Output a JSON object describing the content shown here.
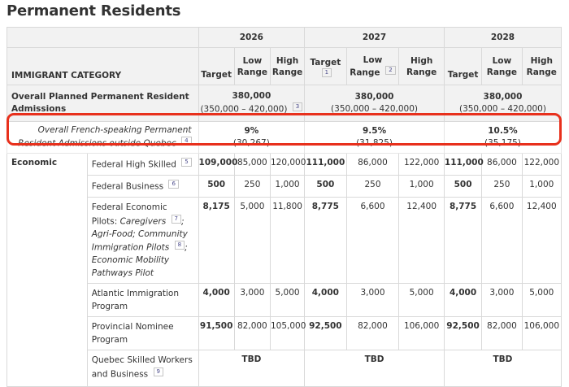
{
  "page": {
    "title": "Permanent Residents"
  },
  "header": {
    "years": [
      "2026",
      "2027",
      "2028"
    ],
    "category_label": "IMMIGRANT CATEGORY",
    "target": "Target",
    "low_range": "Low Range",
    "high_range": "High Range",
    "footnotes": [
      "1",
      "2"
    ]
  },
  "overall": {
    "label": "Overall Planned Permanent Resident Admissions",
    "footnote": "3",
    "years": [
      {
        "value": "380,000",
        "range": "(350,000 – 420,000)"
      },
      {
        "value": "380,000",
        "range": "(350,000 – 420,000)"
      },
      {
        "value": "380,000",
        "range": "(350,000 – 420,000)"
      }
    ]
  },
  "french": {
    "label": "Overall French-speaking Permanent Resident Admissions outside Quebec",
    "footnote": "4",
    "years": [
      {
        "pct": "9%",
        "count": "(30,267)"
      },
      {
        "pct": "9.5%",
        "count": "(31,825)"
      },
      {
        "pct": "10.5%",
        "count": "(35,175)"
      }
    ]
  },
  "economic": {
    "label": "Economic",
    "rows": [
      {
        "name": "Federal High Skilled",
        "footnote": "5",
        "values": [
          "109,000",
          "85,000",
          "120,000",
          "111,000",
          "86,000",
          "122,000",
          "111,000",
          "86,000",
          "122,000"
        ]
      },
      {
        "name": "Federal Business",
        "footnote": "6",
        "values": [
          "500",
          "250",
          "1,000",
          "500",
          "250",
          "1,000",
          "500",
          "250",
          "1,000"
        ]
      },
      {
        "name": "Federal Economic Pilots:",
        "sub1": "Caregivers",
        "fn1": "7",
        "sub2": "; Agri-Food; Community Immigration Pilots",
        "fn2": "8",
        "sub3": "; Economic Mobility Pathways Pilot",
        "values": [
          "8,175",
          "5,000",
          "11,800",
          "8,775",
          "6,600",
          "12,400",
          "8,775",
          "6,600",
          "12,400"
        ]
      },
      {
        "name": "Atlantic Immigration Program",
        "values": [
          "4,000",
          "3,000",
          "5,000",
          "4,000",
          "3,000",
          "5,000",
          "4,000",
          "3,000",
          "5,000"
        ]
      },
      {
        "name": "Provincial Nominee Program",
        "values": [
          "91,500",
          "82,000",
          "105,000",
          "92,500",
          "82,000",
          "106,000",
          "92,500",
          "82,000",
          "106,000"
        ]
      },
      {
        "name": "Quebec Skilled Workers and Business",
        "footnote": "9",
        "tbd": [
          "TBD",
          "TBD",
          "TBD"
        ]
      }
    ]
  },
  "colors": {
    "highlight_border": "#e8301c",
    "header_bg": "#f2f2f2"
  }
}
